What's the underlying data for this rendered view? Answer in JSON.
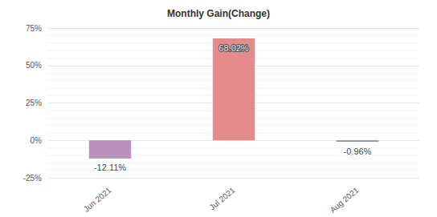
{
  "chart_data": {
    "type": "bar",
    "title": "Monthly Gain(Change)",
    "categories": [
      "Jun 2021",
      "Jul 2021",
      "Aug 2021"
    ],
    "values": [
      -12.11,
      68.02,
      -0.96
    ],
    "value_labels": [
      "-12.11%",
      "68.02%",
      "-0.96%"
    ],
    "colors": [
      "#b68ab8",
      "#e38585",
      "#7f8c9c"
    ],
    "ylim": [
      -25,
      75
    ],
    "yticks": [
      {
        "value": -25,
        "label": "-25%"
      },
      {
        "value": 0,
        "label": "0%"
      },
      {
        "value": 25,
        "label": "25%"
      },
      {
        "value": 50,
        "label": "50%"
      },
      {
        "value": 75,
        "label": "75%"
      }
    ],
    "grid": true,
    "data_labels": true
  }
}
